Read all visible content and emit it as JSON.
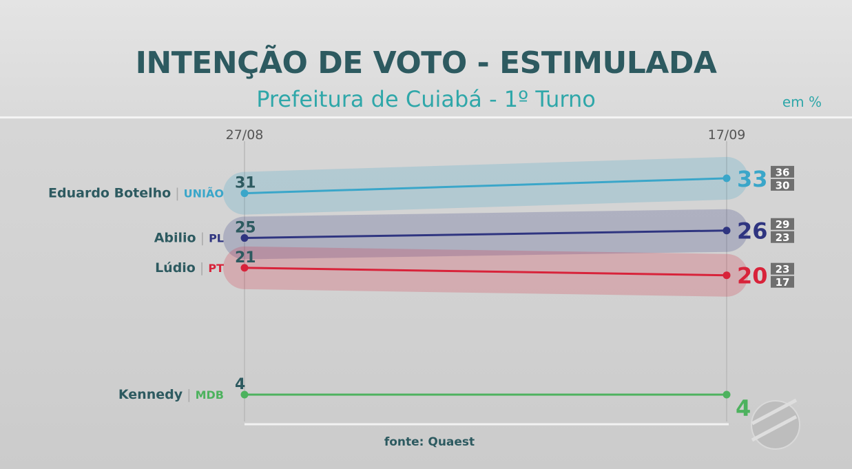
{
  "title": "INTENÇÃO DE VOTO - ESTIMULADA",
  "subtitle": "Prefeitura de Cuiabá - 1º Turno",
  "unit": "em %",
  "source": "fonte: Quaest",
  "chart_data": {
    "type": "line",
    "title": "INTENÇÃO DE VOTO - ESTIMULADA",
    "subtitle": "Prefeitura de Cuiabá - 1º Turno",
    "x": [
      "27/08",
      "17/09"
    ],
    "ylabel": "em %",
    "series": [
      {
        "name": "Eduardo Botelho",
        "party": "UNIÃO",
        "color": "#3aa6c9",
        "values": [
          31,
          33
        ],
        "range": [
          36,
          30
        ],
        "band": true
      },
      {
        "name": "Abilio",
        "party": "PL",
        "color": "#2f3580",
        "values": [
          25,
          26
        ],
        "range": [
          29,
          23
        ],
        "band": true
      },
      {
        "name": "Lúdio",
        "party": "PT",
        "color": "#d8233a",
        "values": [
          21,
          20
        ],
        "range": [
          23,
          17
        ],
        "band": true
      },
      {
        "name": "Kennedy",
        "party": "MDB",
        "color": "#4db25e",
        "values": [
          4,
          4
        ],
        "range": null,
        "band": false
      }
    ]
  }
}
